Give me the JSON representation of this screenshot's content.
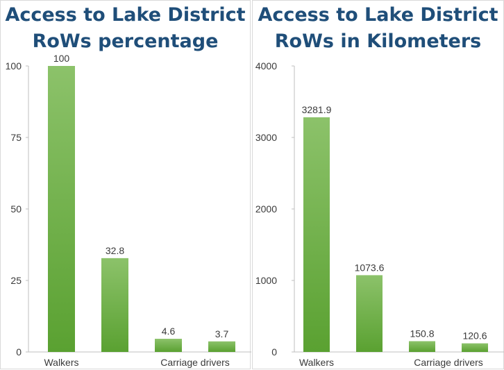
{
  "charts": [
    {
      "title_line1": "Access to Lake District",
      "title_line2": "RoWs percentage"
    },
    {
      "title_line1": "Access to Lake District",
      "title_line2": "RoWs in Kilometers"
    }
  ],
  "colors": {
    "bar_top": "#8cc26a",
    "bar_bottom": "#5aa131",
    "title": "#1f4e79",
    "axis_text": "#3a3a3a",
    "axis_line": "#bfbfbf"
  },
  "chart_data": [
    {
      "type": "bar",
      "title": "Access to Lake District RoWs percentage",
      "categories": [
        "Walkers",
        "",
        "Carriage drivers",
        ""
      ],
      "values": [
        100,
        32.8,
        4.6,
        3.7
      ],
      "data_labels": [
        "100",
        "32.8",
        "4.6",
        "3.7"
      ],
      "ylim": [
        0,
        100
      ],
      "yticks": [
        0,
        25,
        50,
        75,
        100
      ],
      "xlabel": "",
      "ylabel": "",
      "grid": false
    },
    {
      "type": "bar",
      "title": "Access to Lake District RoWs in Kilometers",
      "categories": [
        "Walkers",
        "",
        "Carriage drivers",
        ""
      ],
      "values": [
        3281.9,
        1073.6,
        150.8,
        120.6
      ],
      "data_labels": [
        "3281.9",
        "1073.6",
        "150.8",
        "120.6"
      ],
      "ylim": [
        0,
        4000
      ],
      "yticks": [
        0,
        1000,
        2000,
        3000,
        4000
      ],
      "xlabel": "",
      "ylabel": "",
      "grid": false
    }
  ]
}
